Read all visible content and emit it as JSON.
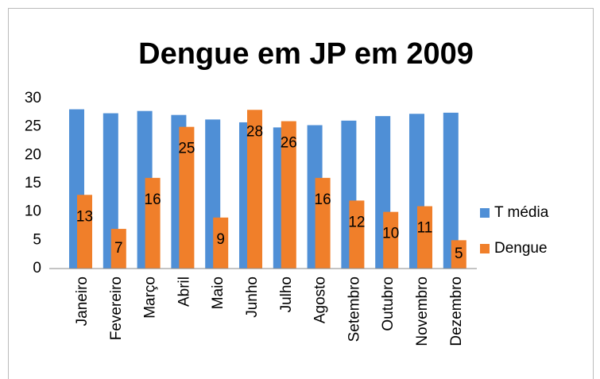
{
  "chart_data": {
    "type": "bar",
    "title": "Dengue em JP em 2009",
    "categories": [
      "Janeiro",
      "Fevereiro",
      "Março",
      "Abril",
      "Maio",
      "Junho",
      "Julho",
      "Agosto",
      "Setembro",
      "Outubro",
      "Novembro",
      "Dezembro"
    ],
    "series": [
      {
        "name": "T média",
        "color": "#4f8fd6",
        "values": [
          28.1,
          27.4,
          27.8,
          27.1,
          26.3,
          25.8,
          24.9,
          25.3,
          26.1,
          26.9,
          27.3,
          27.5
        ]
      },
      {
        "name": "Dengue",
        "color": "#f07f2a",
        "values": [
          13,
          7,
          16,
          25,
          9,
          28,
          26,
          16,
          12,
          10,
          11,
          5
        ],
        "data_labels": true
      }
    ],
    "ylim": [
      0,
      30
    ],
    "yticks": [
      0,
      5,
      10,
      15,
      20,
      25,
      30
    ],
    "grid": false,
    "legend": "right"
  }
}
